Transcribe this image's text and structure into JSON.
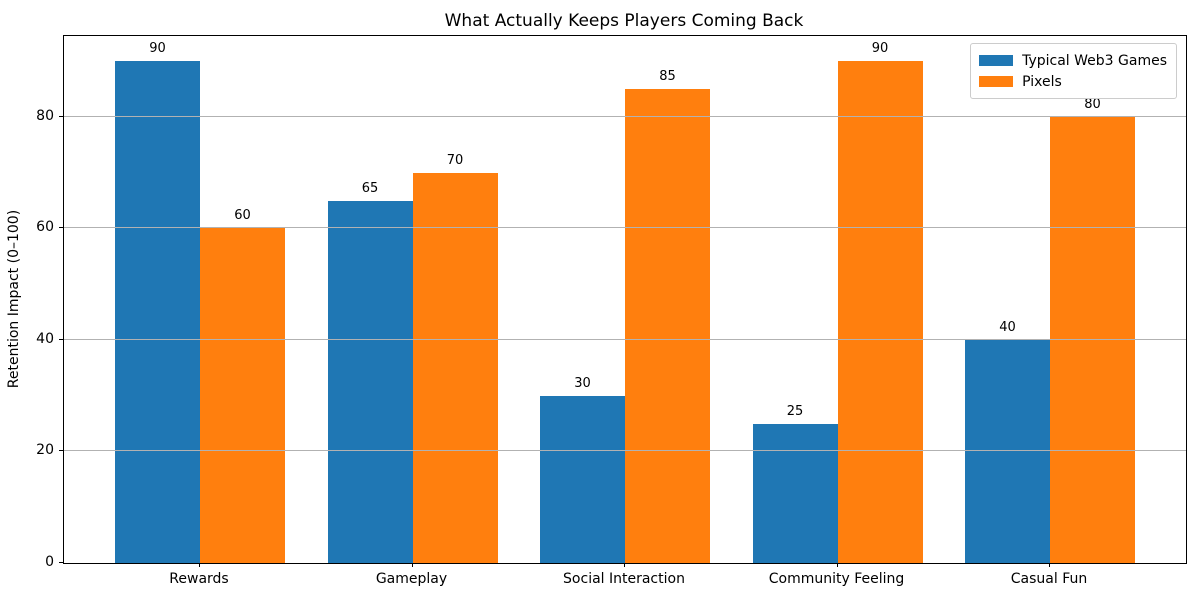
{
  "chart_data": {
    "type": "bar",
    "title": "What Actually Keeps Players Coming Back",
    "xlabel": "",
    "ylabel": "Retention Impact (0–100)",
    "categories": [
      "Rewards",
      "Gameplay",
      "Social Interaction",
      "Community Feeling",
      "Casual Fun"
    ],
    "series": [
      {
        "name": "Typical Web3 Games",
        "color": "#1f77b4",
        "values": [
          90,
          65,
          30,
          25,
          40
        ]
      },
      {
        "name": "Pixels",
        "color": "#ff7f0e",
        "values": [
          60,
          70,
          85,
          90,
          80
        ]
      }
    ],
    "bar_labels": true,
    "ylim": [
      0,
      94.5
    ],
    "yticks": [
      0,
      20,
      40,
      60,
      80
    ],
    "grid": true,
    "grid_over_bars": true,
    "legend_position": "upper right",
    "bar_width_fraction": 0.4
  }
}
